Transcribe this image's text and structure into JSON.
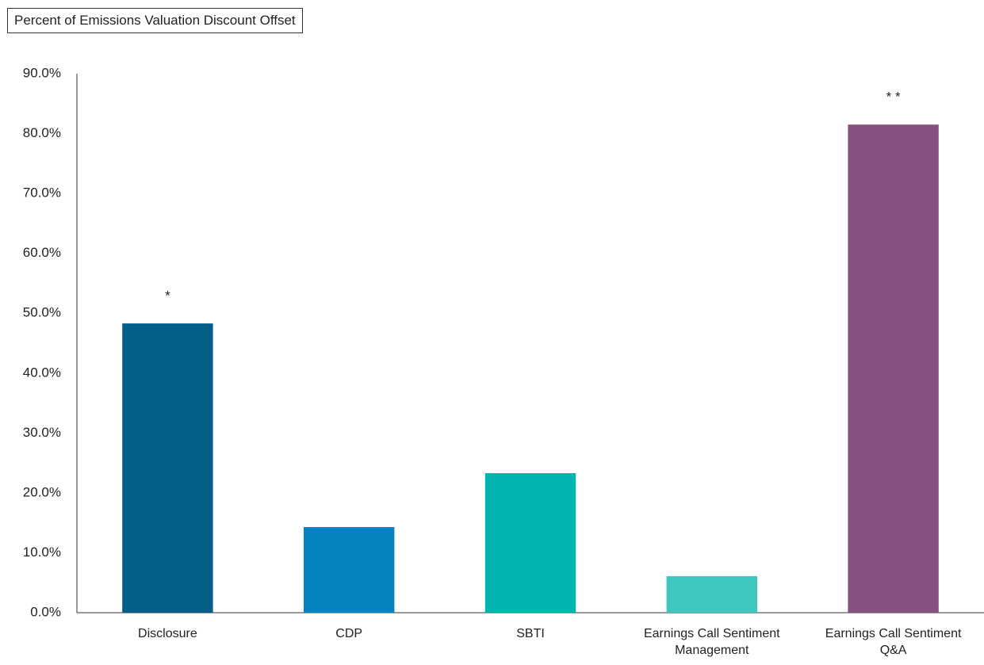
{
  "chart_data": {
    "type": "bar",
    "title": "Percent of Emissions Valuation Discount Offset",
    "categories": [
      "Disclosure",
      "CDP",
      "SBTI",
      "Earnings Call Sentiment Management",
      "Earnings Call Sentiment Q&A"
    ],
    "values": [
      48.3,
      14.3,
      23.3,
      6.1,
      81.5
    ],
    "colors": [
      "#035f88",
      "#0582bf",
      "#00b5b0",
      "#40c6c0",
      "#87507e"
    ],
    "annotations": [
      "*",
      null,
      null,
      null,
      "* *"
    ],
    "ylim": [
      0,
      90
    ],
    "yticks": [
      {
        "value": 0,
        "label": "0.0%"
      },
      {
        "value": 10,
        "label": "10.0%"
      },
      {
        "value": 20,
        "label": "20.0%"
      },
      {
        "value": 30,
        "label": "30.0%"
      },
      {
        "value": 40,
        "label": "40.0%"
      },
      {
        "value": 50,
        "label": "50.0%"
      },
      {
        "value": 60,
        "label": "60.0%"
      },
      {
        "value": 70,
        "label": "70.0%"
      },
      {
        "value": 80,
        "label": "80.0%"
      },
      {
        "value": 90,
        "label": "90.0%"
      }
    ],
    "grid": false
  }
}
